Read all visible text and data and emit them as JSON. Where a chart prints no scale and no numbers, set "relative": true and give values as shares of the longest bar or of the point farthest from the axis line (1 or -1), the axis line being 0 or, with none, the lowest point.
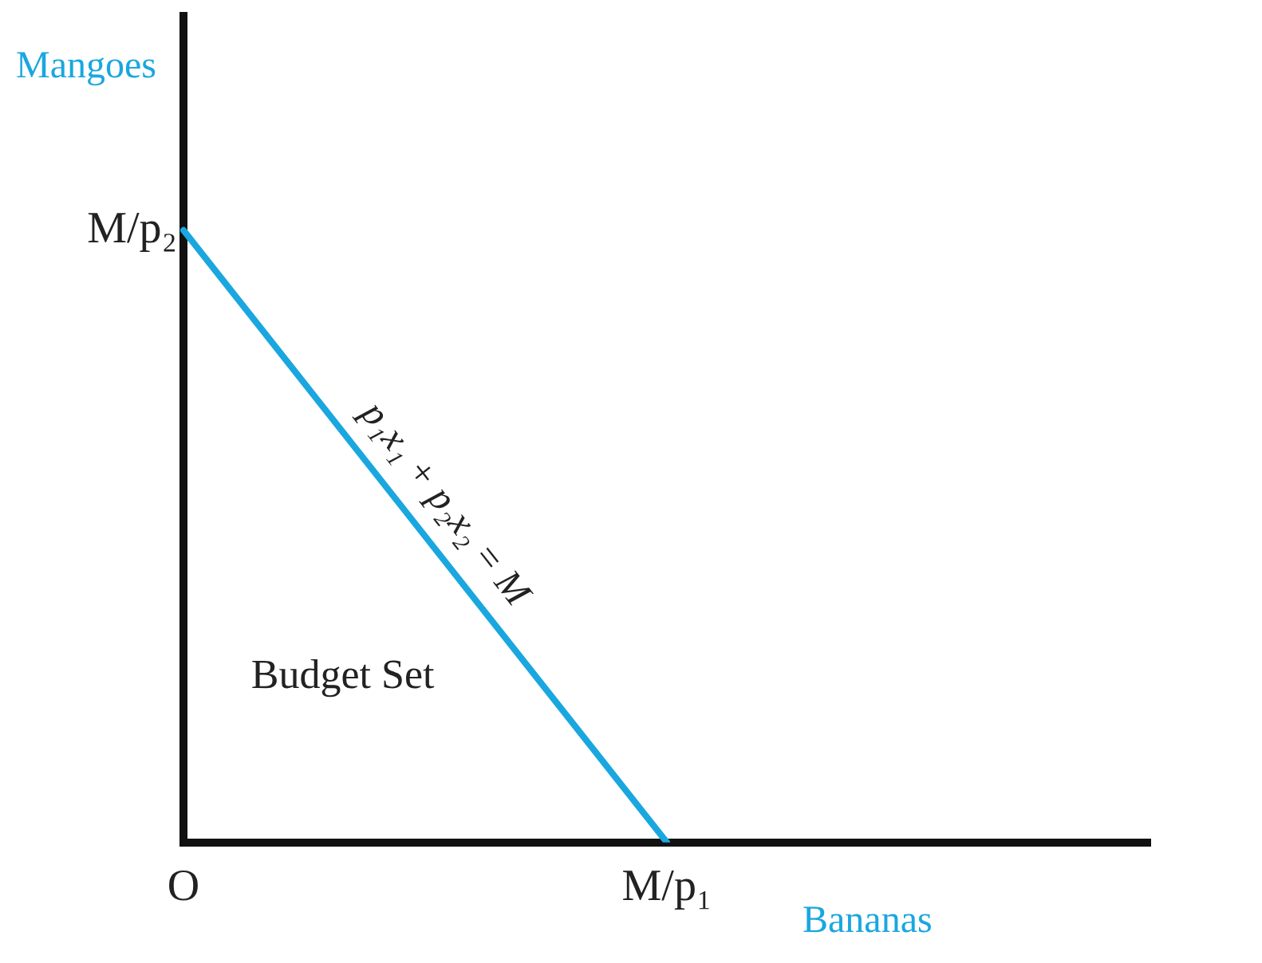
{
  "chart_data": {
    "type": "line",
    "xlabel": "Bananas",
    "ylabel": "Mangoes",
    "relative": true,
    "categories": [
      "O",
      "M/p₁",
      null
    ],
    "series": [
      {
        "color": "#1aa7df",
        "values": [
          1,
          0,
          null
        ]
      }
    ],
    "annotations": [
      "p₁x₁ + p₂x₂ = M",
      "Budget Set",
      "M/p₂"
    ],
    "grid": false,
    "legend": false,
    "marker": "none",
    "line_style": "solid"
  }
}
